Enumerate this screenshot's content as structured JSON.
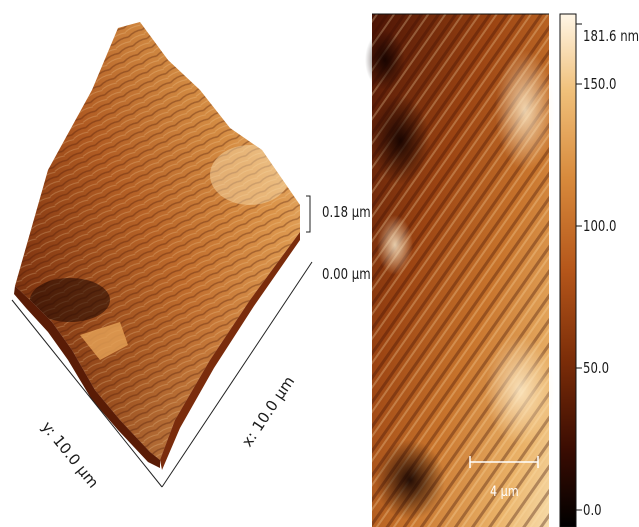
{
  "left_panel": {
    "z_axis": {
      "top_label": "0.18 µm",
      "bottom_label": "0.00 µm"
    },
    "x_axis_label": "x: 10.0 µm",
    "y_axis_label": "y: 10.0 µm"
  },
  "right_panel": {
    "scale_bar_label": "4 µm"
  },
  "colorbar": {
    "max_label": "181.6 nm",
    "ticks": [
      "150.0",
      "100.0",
      "50.0",
      "0.0"
    ],
    "tick_values": [
      150.0,
      100.0,
      50.0,
      0.0
    ],
    "max_value": 181.6,
    "min_value": 0.0,
    "colormap": [
      "#000000",
      "#3a0c02",
      "#7a2c08",
      "#b5561a",
      "#d88a3c",
      "#f0c07a",
      "#fff4e0"
    ]
  },
  "colors": {
    "dark": "#3a1206",
    "mid": "#b5561a",
    "light": "#f5d49a"
  }
}
